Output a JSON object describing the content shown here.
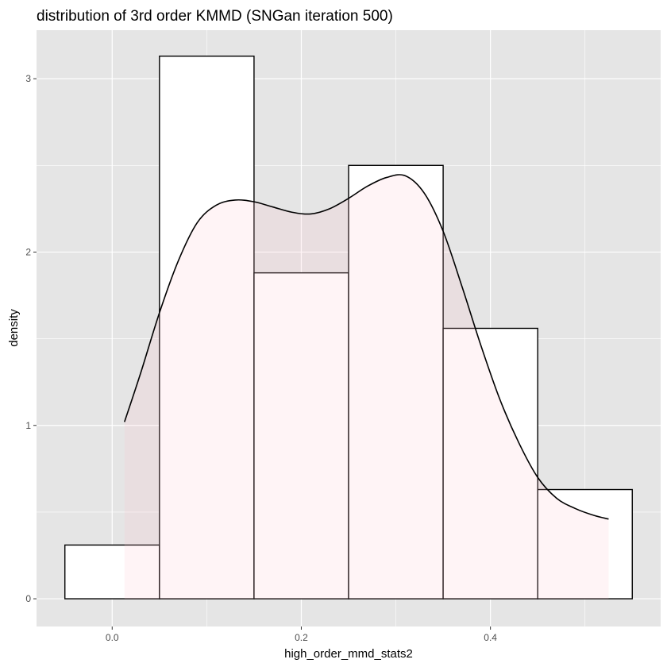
{
  "chart_data": {
    "type": "histogram",
    "title": "distribution of 3rd order KMMD (SNGan iteration 500)",
    "xlabel": "high_order_mmd_stats2",
    "ylabel": "density",
    "xlim": [
      -0.08,
      0.58
    ],
    "ylim": [
      -0.16,
      3.28
    ],
    "x_ticks": [
      {
        "value": 0.0,
        "label": "0.0"
      },
      {
        "value": 0.2,
        "label": "0.2"
      },
      {
        "value": 0.4,
        "label": "0.4"
      }
    ],
    "y_ticks": [
      {
        "value": 0,
        "label": "0"
      },
      {
        "value": 1,
        "label": "1"
      },
      {
        "value": 2,
        "label": "2"
      },
      {
        "value": 3,
        "label": "3"
      }
    ],
    "bins": [
      {
        "x0": -0.05,
        "x1": 0.05,
        "density": 0.31
      },
      {
        "x0": 0.05,
        "x1": 0.15,
        "density": 3.13
      },
      {
        "x0": 0.15,
        "x1": 0.25,
        "density": 1.88
      },
      {
        "x0": 0.25,
        "x1": 0.35,
        "density": 2.5
      },
      {
        "x0": 0.35,
        "x1": 0.45,
        "density": 1.56
      },
      {
        "x0": 0.45,
        "x1": 0.55,
        "density": 0.63
      }
    ],
    "density_curve": {
      "x": [
        0.013,
        0.03,
        0.05,
        0.07,
        0.09,
        0.11,
        0.13,
        0.15,
        0.17,
        0.19,
        0.21,
        0.23,
        0.25,
        0.27,
        0.29,
        0.31,
        0.33,
        0.35,
        0.37,
        0.39,
        0.41,
        0.43,
        0.45,
        0.47,
        0.49,
        0.51,
        0.525
      ],
      "y": [
        1.02,
        1.3,
        1.65,
        1.95,
        2.17,
        2.27,
        2.3,
        2.29,
        2.26,
        2.23,
        2.22,
        2.25,
        2.31,
        2.38,
        2.43,
        2.44,
        2.34,
        2.12,
        1.8,
        1.46,
        1.15,
        0.9,
        0.7,
        0.58,
        0.52,
        0.48,
        0.46
      ]
    },
    "colors": {
      "panel_background": "#e5e5e5",
      "grid": "#ffffff",
      "bar_fill": "#ffffff",
      "bar_outline": "#000000",
      "density_fill": "#ffc0cb",
      "density_line": "#000000"
    },
    "grid": true,
    "legend": "none"
  }
}
